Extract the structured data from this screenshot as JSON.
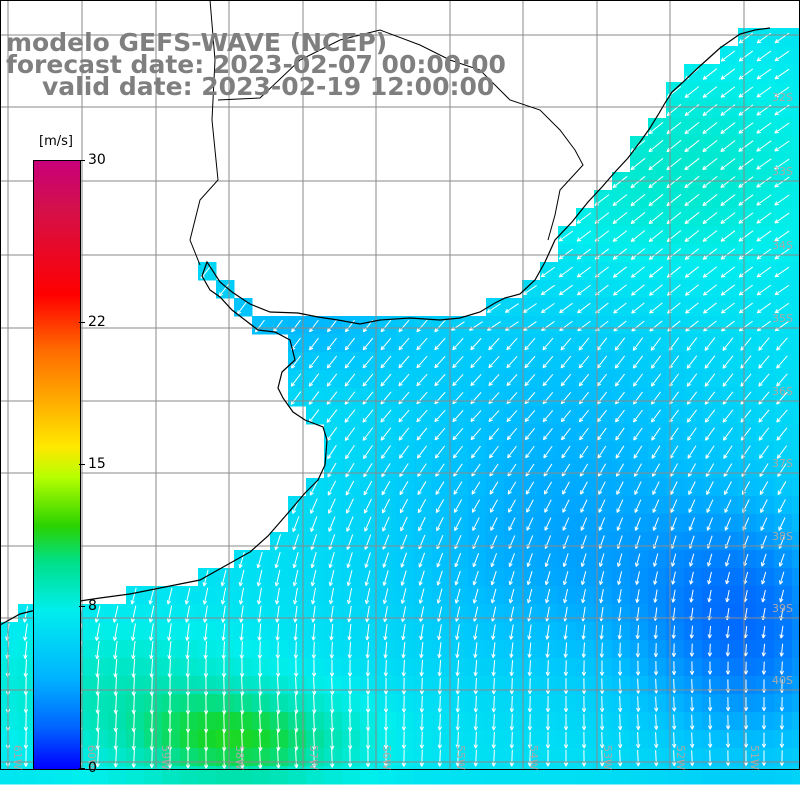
{
  "title": {
    "line1": "modelo GEFS-WAVE (NCEP)",
    "line2": "forecast date: 2023-02-07 00:00:00",
    "line3": "valid date: 2023-02-19 12:00:00"
  },
  "colorbar": {
    "unit": "[m/s]",
    "ticks": [
      {
        "label": "30",
        "value": 30
      },
      {
        "label": "22",
        "value": 22
      },
      {
        "label": "15",
        "value": 15
      },
      {
        "label": "8",
        "value": 8
      },
      {
        "label": "0",
        "value": 0
      }
    ],
    "range": [
      0,
      30
    ]
  },
  "map": {
    "lat_labels": [
      "32S",
      "33S",
      "34S",
      "35S",
      "36S",
      "37S",
      "38S",
      "39S",
      "40S"
    ],
    "lon_labels": [
      "61W",
      "60W",
      "59W",
      "58W",
      "57W",
      "56W",
      "55W",
      "54W",
      "53W",
      "52W",
      "51W"
    ],
    "colors": {
      "land": "#ffffff",
      "coast": "#000000",
      "grid": "#8a8a8a",
      "arrow": "#ffffff",
      "strong_wind": "#00dd33",
      "calm_wind": "#0044ff",
      "moderate_wind": "#00ccff"
    }
  }
}
